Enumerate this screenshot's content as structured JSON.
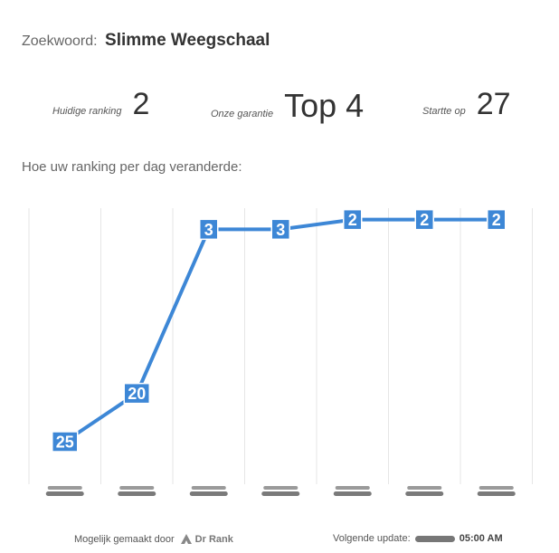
{
  "header": {
    "keyword_label": "Zoekwoord:",
    "keyword_value": "Slimme Weegschaal"
  },
  "stats": [
    {
      "label": "Huidige ranking",
      "value": "2"
    },
    {
      "label": "Onze garantie",
      "value": "Top 4"
    },
    {
      "label": "Startte op",
      "value": "27"
    }
  ],
  "subtitle": "Hoe uw ranking per dag veranderde:",
  "chart_data": {
    "type": "line",
    "series": [
      {
        "values": [
          25,
          20,
          3,
          3,
          2,
          2,
          2
        ]
      }
    ],
    "y_reversed": true,
    "ylim": [
      1,
      28
    ],
    "grid": "vertical",
    "line_color": "#3d87d6",
    "label_bg_color": "#3d87d6"
  },
  "footer": {
    "made_by": "Mogelijk gemaakt door",
    "brand": "Dr Rank",
    "next_update_label": "Volgende update:",
    "next_update_time": "05:00 AM"
  }
}
